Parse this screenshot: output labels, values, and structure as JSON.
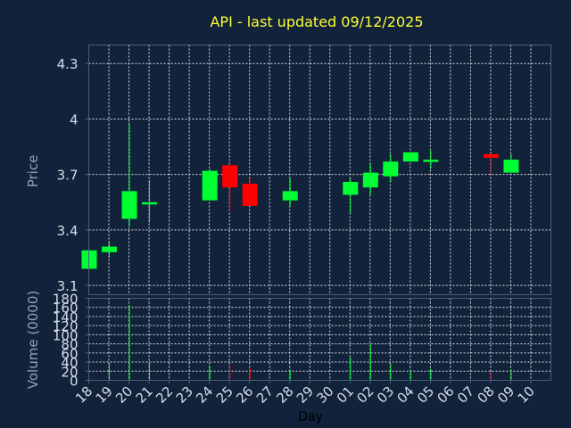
{
  "chart_data": {
    "type": "candlestick",
    "title": "API - last updated 09/12/2025",
    "title_color": "#ffff33",
    "up_color": "#00ff33",
    "down_color": "#ff0000",
    "background_color": "#11223a",
    "price_panel": {
      "ylabel": "Price",
      "ylim": [
        3.05,
        4.4
      ],
      "yticks": [
        3.1,
        3.4,
        3.7,
        4.0,
        4.3
      ],
      "ytick_labels": [
        "3.1",
        "3.4",
        "3.7",
        "4",
        "4.3"
      ],
      "grid": true
    },
    "volume_panel": {
      "ylabel": "Volume (0000)",
      "ylim": [
        0,
        180
      ],
      "yticks": [
        0,
        20,
        40,
        60,
        80,
        100,
        120,
        140,
        160,
        180
      ],
      "ytick_labels": [
        "0",
        "20",
        "40",
        "60",
        "80",
        "100",
        "120",
        "140",
        "160",
        "180"
      ],
      "grid": true
    },
    "xlabel": "Day",
    "x_labels": [
      "18",
      "19",
      "20",
      "21",
      "22",
      "23",
      "24",
      "25",
      "26",
      "27",
      "28",
      "29",
      "30",
      "01",
      "02",
      "03",
      "04",
      "05",
      "06",
      "07",
      "08",
      "09",
      "10"
    ],
    "candles": [
      {
        "day": "18",
        "open": 3.19,
        "high": 3.29,
        "low": 3.19,
        "close": 3.29,
        "volume": 0
      },
      {
        "day": "19",
        "open": 3.28,
        "high": 3.34,
        "low": 3.25,
        "close": 3.31,
        "volume": 38
      },
      {
        "day": "20",
        "open": 3.46,
        "high": 3.98,
        "low": 3.42,
        "close": 3.61,
        "volume": 165
      },
      {
        "day": "21",
        "open": 3.55,
        "high": 3.67,
        "low": 3.44,
        "close": 3.55,
        "volume": 37
      },
      {
        "day": "24",
        "open": 3.56,
        "high": 3.73,
        "low": 3.56,
        "close": 3.72,
        "volume": 32
      },
      {
        "day": "25",
        "open": 3.75,
        "high": 3.76,
        "low": 3.5,
        "close": 3.63,
        "volume": 36
      },
      {
        "day": "26",
        "open": 3.65,
        "high": 3.68,
        "low": 3.53,
        "close": 3.53,
        "volume": 28
      },
      {
        "day": "28",
        "open": 3.56,
        "high": 3.68,
        "low": 3.53,
        "close": 3.61,
        "volume": 22
      },
      {
        "day": "01",
        "open": 3.59,
        "high": 3.68,
        "low": 3.49,
        "close": 3.66,
        "volume": 50
      },
      {
        "day": "02",
        "open": 3.63,
        "high": 3.76,
        "low": 3.59,
        "close": 3.71,
        "volume": 78
      },
      {
        "day": "03",
        "open": 3.69,
        "high": 3.81,
        "low": 3.66,
        "close": 3.77,
        "volume": 36
      },
      {
        "day": "04",
        "open": 3.77,
        "high": 3.82,
        "low": 3.77,
        "close": 3.82,
        "volume": 20
      },
      {
        "day": "05",
        "open": 3.78,
        "high": 3.83,
        "low": 3.73,
        "close": 3.78,
        "volume": 25
      },
      {
        "day": "08",
        "open": 3.81,
        "high": 3.81,
        "low": 3.7,
        "close": 3.79,
        "volume": 20
      },
      {
        "day": "09",
        "open": 3.71,
        "high": 3.81,
        "low": 3.71,
        "close": 3.78,
        "volume": 24
      }
    ]
  }
}
